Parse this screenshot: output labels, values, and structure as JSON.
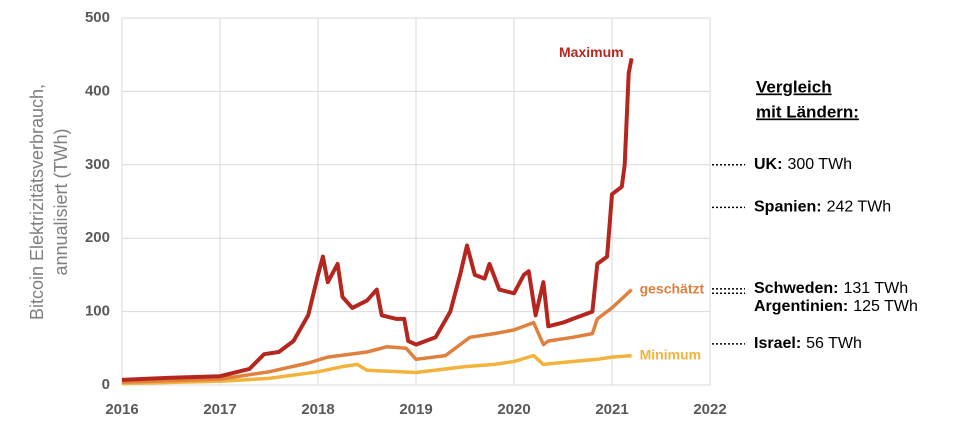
{
  "chart_data": {
    "type": "line",
    "y_label": [
      "Bitcoin Elektrizitätsverbrauch,",
      "annualisiert (TWh)"
    ],
    "xlim": [
      2016,
      2022
    ],
    "xticks": [
      2016,
      2017,
      2018,
      2019,
      2020,
      2021,
      2022
    ],
    "ylim": [
      0,
      500
    ],
    "yticks": [
      0,
      100,
      200,
      300,
      400,
      500
    ],
    "grid": true,
    "series": [
      {
        "name": "Maximum",
        "color": "#b5261e",
        "x": [
          2016.0,
          2016.5,
          2017.0,
          2017.3,
          2017.45,
          2017.6,
          2017.75,
          2017.9,
          2018.0,
          2018.05,
          2018.1,
          2018.2,
          2018.25,
          2018.35,
          2018.5,
          2018.6,
          2018.65,
          2018.8,
          2018.88,
          2018.92,
          2019.0,
          2019.2,
          2019.35,
          2019.45,
          2019.52,
          2019.6,
          2019.7,
          2019.75,
          2019.85,
          2020.0,
          2020.1,
          2020.15,
          2020.22,
          2020.3,
          2020.35,
          2020.5,
          2020.6,
          2020.8,
          2020.85,
          2020.95,
          2021.0,
          2021.1,
          2021.13,
          2021.17,
          2021.2
        ],
        "values": [
          7,
          10,
          12,
          22,
          42,
          45,
          60,
          95,
          150,
          175,
          140,
          165,
          120,
          105,
          115,
          130,
          95,
          90,
          90,
          60,
          55,
          65,
          100,
          150,
          190,
          150,
          145,
          165,
          130,
          125,
          150,
          155,
          95,
          140,
          80,
          85,
          90,
          100,
          165,
          175,
          260,
          270,
          300,
          425,
          445
        ]
      },
      {
        "name": "geschätzt",
        "color": "#e0803f",
        "x": [
          2016.0,
          2017.0,
          2017.5,
          2017.9,
          2018.1,
          2018.5,
          2018.7,
          2018.9,
          2019.0,
          2019.3,
          2019.55,
          2019.8,
          2020.0,
          2020.2,
          2020.3,
          2020.35,
          2020.6,
          2020.8,
          2020.85,
          2021.0,
          2021.2
        ],
        "values": [
          4,
          8,
          18,
          30,
          38,
          45,
          52,
          50,
          35,
          40,
          65,
          70,
          75,
          85,
          55,
          60,
          65,
          70,
          90,
          105,
          130
        ]
      },
      {
        "name": "Minimum",
        "color": "#f2b33d",
        "x": [
          2016.0,
          2017.0,
          2017.5,
          2018.0,
          2018.25,
          2018.4,
          2018.5,
          2019.0,
          2019.5,
          2019.8,
          2020.0,
          2020.2,
          2020.3,
          2020.6,
          2020.85,
          2021.0,
          2021.2
        ],
        "values": [
          2,
          5,
          9,
          18,
          25,
          28,
          20,
          17,
          25,
          28,
          32,
          40,
          28,
          32,
          35,
          38,
          40
        ]
      }
    ],
    "comparison_title": [
      "Vergleich",
      "mit Ländern:"
    ],
    "references": [
      {
        "label": "UK:",
        "value": 300,
        "value_label": "300 TWh"
      },
      {
        "label": "Spanien:",
        "value": 242,
        "value_label": "242 TWh"
      },
      {
        "label": "Schweden:",
        "value": 131,
        "value_label": "131 TWh"
      },
      {
        "label": "Argentinien:",
        "value": 125,
        "value_label": "125 TWh"
      },
      {
        "label": "Israel:",
        "value": 56,
        "value_label": "56 TWh"
      }
    ]
  }
}
